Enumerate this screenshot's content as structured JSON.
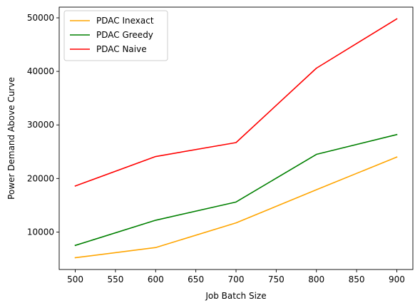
{
  "chart_data": {
    "type": "line",
    "title": "",
    "xlabel": "Job Batch Size",
    "ylabel": "Power Demand Above Curve",
    "x": [
      500,
      600,
      700,
      800,
      900
    ],
    "xticks": [
      "500",
      "550",
      "600",
      "650",
      "700",
      "750",
      "800",
      "850",
      "900"
    ],
    "xtick_values": [
      500,
      550,
      600,
      650,
      700,
      750,
      800,
      850,
      900
    ],
    "yticks": [
      "10000",
      "20000",
      "30000",
      "40000",
      "50000"
    ],
    "ytick_values": [
      10000,
      20000,
      30000,
      40000,
      50000
    ],
    "xlim": [
      480,
      920
    ],
    "ylim": [
      3000,
      52000
    ],
    "grid": false,
    "legend_position": "top-left",
    "series": [
      {
        "name": "PDAC Inexact",
        "color": "#ffa500",
        "values": [
          5200,
          7100,
          11700,
          17900,
          24000
        ]
      },
      {
        "name": "PDAC Greedy",
        "color": "#008000",
        "values": [
          7500,
          12200,
          15600,
          24500,
          28200
        ]
      },
      {
        "name": "PDAC Naive",
        "color": "#ff0000",
        "values": [
          18600,
          24100,
          26700,
          40600,
          49800
        ]
      }
    ]
  }
}
